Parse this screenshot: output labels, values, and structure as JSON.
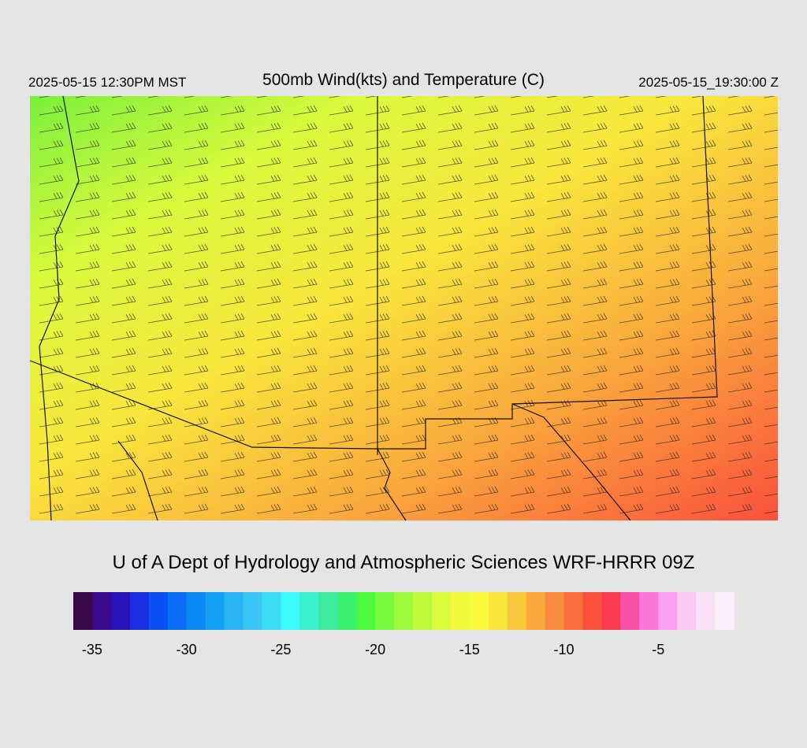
{
  "header": {
    "left": "2025-05-15 12:30PM MST",
    "title": "500mb Wind(kts) and Temperature (C)",
    "right": "2025-05-15_19:30:00 Z"
  },
  "footer": "U of A Dept of Hydrology and Atmospheric Sciences WRF-HRRR 09Z",
  "colorbar": {
    "range": [
      -36,
      -1
    ],
    "colors": [
      "#3a0a4a",
      "#3a0a8c",
      "#2a10b8",
      "#1a2ee0",
      "#0a50f5",
      "#0a6ef5",
      "#0a8af5",
      "#16a0f5",
      "#2ab4f5",
      "#3cc6f5",
      "#3cdcf5",
      "#3cfafa",
      "#3cf0d0",
      "#3ceaa0",
      "#3cf070",
      "#4cfa3c",
      "#7afa3c",
      "#a0fa3c",
      "#c0fa3c",
      "#dafa3c",
      "#f0fa3c",
      "#fafa3c",
      "#fae63c",
      "#fac83c",
      "#faaa3c",
      "#fa8a3c",
      "#fa6e3c",
      "#fa503c",
      "#fa3c50",
      "#f850a8",
      "#fa78d8",
      "#faa0f0",
      "#fac8f0",
      "#fae0f8",
      "#fcf0fc"
    ],
    "ticks": [
      -35,
      -30,
      -25,
      -20,
      -15,
      -10,
      -5
    ]
  }
}
